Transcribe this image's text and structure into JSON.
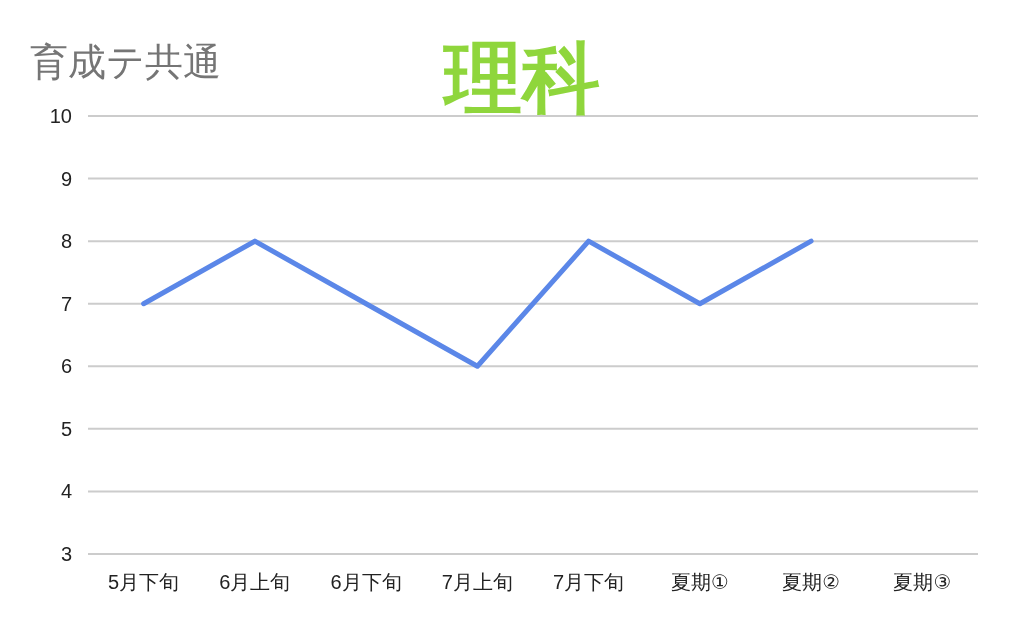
{
  "chart_data": {
    "type": "line",
    "title": "理科",
    "subtitle": "育成テ共通",
    "categories": [
      "5月下旬",
      "6月上旬",
      "6月下旬",
      "7月上旬",
      "7月下旬",
      "夏期①",
      "夏期②",
      "夏期③"
    ],
    "series": [
      {
        "color": "#5b87e8",
        "values": [
          7,
          8,
          7,
          6,
          8,
          7,
          8,
          null
        ]
      }
    ],
    "ylim": [
      3,
      10
    ],
    "yticks": [
      3,
      4,
      5,
      6,
      7,
      8,
      9,
      10
    ],
    "grid": "y",
    "marker": "none",
    "line_style": "solid"
  }
}
